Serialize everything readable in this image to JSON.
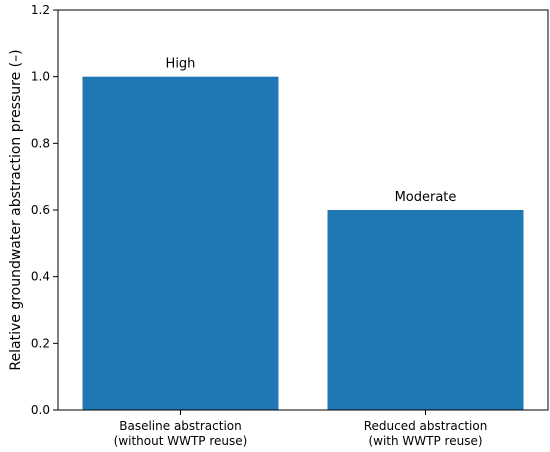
{
  "chart_data": {
    "type": "bar",
    "categories": [
      [
        "Baseline abstraction",
        "(without WWTP reuse)"
      ],
      [
        "Reduced abstraction",
        "(with WWTP reuse)"
      ]
    ],
    "values": [
      1.0,
      0.6
    ],
    "bar_labels": [
      "High",
      "Moderate"
    ],
    "ylabel": "Relative groundwater abstraction pressure (–)",
    "xlabel": "",
    "ylim": [
      0,
      1.2
    ],
    "yticks": [
      0.0,
      0.2,
      0.4,
      0.6,
      0.8,
      1.0,
      1.2
    ],
    "ytick_labels": [
      "0.0",
      "0.2",
      "0.4",
      "0.6",
      "0.8",
      "1.0",
      "1.2"
    ],
    "grid": false,
    "colors": {
      "bar": "#1f77b4",
      "axis": "#000000"
    }
  }
}
